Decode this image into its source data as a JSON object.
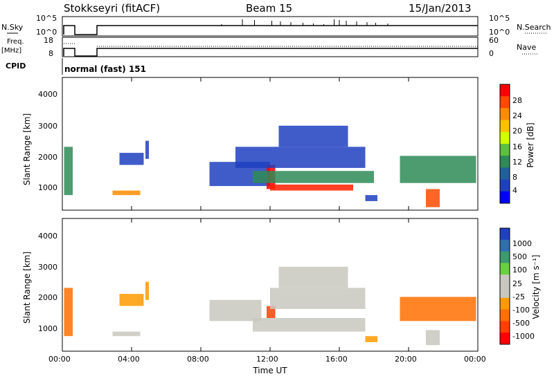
{
  "header": {
    "station": "Stokkseyri (fitACF)",
    "beam": "Beam 15",
    "date": "15/Jan/2013"
  },
  "sky_panel": {
    "left_label": "N.Sky",
    "right_label": "N.Search",
    "left_ticks": [
      "10^5",
      "10^0"
    ],
    "right_ticks": [
      "10^5",
      "10^0"
    ]
  },
  "freq_panel": {
    "left_label_line1": "Freq.",
    "left_label_line2": "[MHz]",
    "right_label": "Nave",
    "left_ticks": [
      "18",
      "8"
    ],
    "right_ticks": [
      "60",
      "0"
    ]
  },
  "cpid": {
    "label": "CPID",
    "mode": "normal (fast) 151"
  },
  "power_panel": {
    "ylabel": "Slant Range [km]",
    "yticks": [
      "4000",
      "3000",
      "2000",
      "1000"
    ],
    "colorbar_label": "Power [dB]",
    "colorbar_ticks": [
      "28",
      "24",
      "20",
      "16",
      "12",
      "8",
      "4"
    ],
    "colorbar_colors": [
      "#ff0000",
      "#ff4a00",
      "#ff8c00",
      "#ffc000",
      "#d2ff00",
      "#5fbf3f",
      "#2e8b57",
      "#20609f",
      "#1e40c0",
      "#0000ff"
    ]
  },
  "velocity_panel": {
    "ylabel": "Slant Range [km]",
    "yticks": [
      "4000",
      "3000",
      "2000",
      "1000"
    ],
    "colorbar_label": "Velocity [m s⁻¹]",
    "colorbar_ticks": [
      "1000",
      "500",
      "100",
      "25",
      "-25",
      "-100",
      "-500",
      "-1000"
    ],
    "colorbar_colors": [
      "#2040c0",
      "#2f6fb0",
      "#3a9b70",
      "#6ad040",
      "#c8c8c0",
      "#c8c8c0",
      "#ff9a00",
      "#ff7000",
      "#ff4000",
      "#ff0000"
    ]
  },
  "xaxis": {
    "label": "Time UT",
    "ticks": [
      "00:00",
      "04:00",
      "08:00",
      "12:00",
      "16:00",
      "20:00",
      "00:00"
    ]
  },
  "chart_data": {
    "type": "heatmap",
    "x_unit": "hours UT",
    "x_range": [
      0,
      24
    ],
    "y_range": [
      200,
      4600
    ],
    "power_regions": [
      {
        "t0": 0.1,
        "t1": 0.6,
        "r0": 700,
        "r1": 2300,
        "c": "#2e8b57"
      },
      {
        "t0": 2.9,
        "t1": 4.5,
        "r0": 700,
        "r1": 850,
        "c": "#ff8c00"
      },
      {
        "t0": 3.3,
        "t1": 4.7,
        "r0": 1700,
        "r1": 2100,
        "c": "#1e40c0"
      },
      {
        "t0": 4.8,
        "t1": 5.0,
        "r0": 1900,
        "r1": 2500,
        "c": "#1e40c0"
      },
      {
        "t0": 8.5,
        "t1": 12.0,
        "r0": 1000,
        "r1": 1800,
        "c": "#1e40c0"
      },
      {
        "t0": 11.8,
        "t1": 12.3,
        "r0": 900,
        "r1": 1700,
        "c": "#ff0000"
      },
      {
        "t0": 12.0,
        "t1": 16.8,
        "r0": 850,
        "r1": 1050,
        "c": "#ff2000"
      },
      {
        "t0": 11.0,
        "t1": 18.0,
        "r0": 1100,
        "r1": 1500,
        "c": "#2e8b57"
      },
      {
        "t0": 10.0,
        "t1": 17.5,
        "r0": 1600,
        "r1": 2300,
        "c": "#1e40c0"
      },
      {
        "t0": 12.5,
        "t1": 16.5,
        "r0": 2300,
        "r1": 3000,
        "c": "#1e40c0"
      },
      {
        "t0": 17.5,
        "t1": 18.2,
        "r0": 500,
        "r1": 700,
        "c": "#1e40c0"
      },
      {
        "t0": 19.5,
        "t1": 23.9,
        "r0": 1100,
        "r1": 2000,
        "c": "#2e8b57"
      },
      {
        "t0": 21.0,
        "t1": 21.8,
        "r0": 300,
        "r1": 900,
        "c": "#ff4a00"
      }
    ],
    "velocity_regions": [
      {
        "t0": 0.1,
        "t1": 0.6,
        "r0": 700,
        "r1": 2300,
        "c": "#ff7000"
      },
      {
        "t0": 2.9,
        "t1": 4.5,
        "r0": 700,
        "r1": 850,
        "c": "#c8c8c0"
      },
      {
        "t0": 3.3,
        "t1": 4.7,
        "r0": 1700,
        "r1": 2100,
        "c": "#ff9a00"
      },
      {
        "t0": 4.8,
        "t1": 5.0,
        "r0": 1900,
        "r1": 2500,
        "c": "#ff9a00"
      },
      {
        "t0": 8.5,
        "t1": 11.5,
        "r0": 1200,
        "r1": 1900,
        "c": "#c8c8c0"
      },
      {
        "t0": 11.0,
        "t1": 17.5,
        "r0": 850,
        "r1": 1300,
        "c": "#c8c8c0"
      },
      {
        "t0": 11.8,
        "t1": 12.3,
        "r0": 1300,
        "r1": 1700,
        "c": "#ff4000"
      },
      {
        "t0": 12.0,
        "t1": 17.5,
        "r0": 1600,
        "r1": 2300,
        "c": "#c8c8c0"
      },
      {
        "t0": 12.5,
        "t1": 16.5,
        "r0": 2300,
        "r1": 3000,
        "c": "#c8c8c0"
      },
      {
        "t0": 17.5,
        "t1": 18.2,
        "r0": 500,
        "r1": 700,
        "c": "#ff9a00"
      },
      {
        "t0": 19.5,
        "t1": 23.9,
        "r0": 1200,
        "r1": 2000,
        "c": "#ff7000"
      },
      {
        "t0": 21.0,
        "t1": 21.8,
        "r0": 400,
        "r1": 900,
        "c": "#c8c8c0"
      }
    ]
  }
}
